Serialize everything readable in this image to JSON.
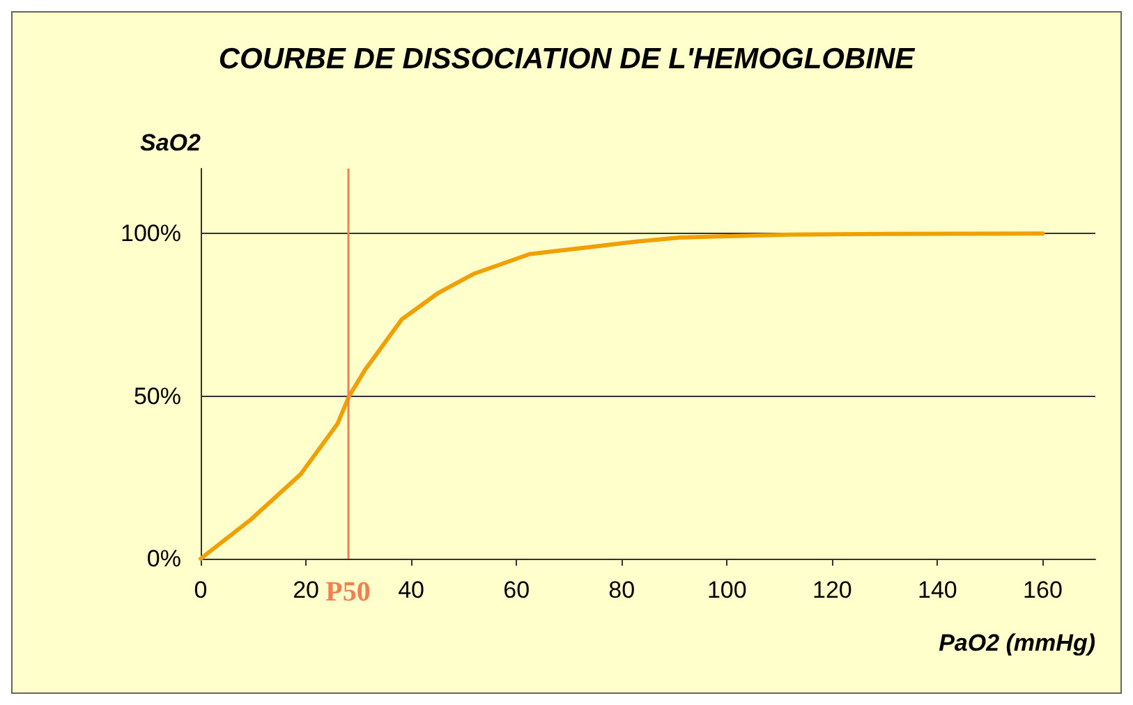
{
  "chart_data": {
    "type": "line",
    "title": "COURBE DE DISSOCIATION DE L'HEMOGLOBINE",
    "xlabel": "PaO2 (mmHg)",
    "ylabel": "SaO2",
    "series": [
      {
        "color": "#f0a000",
        "x": [
          0,
          9.5,
          19,
          26,
          28.2,
          31.2,
          38.2,
          45,
          52,
          62.5,
          73,
          82.5,
          91,
          112,
          130,
          160
        ],
        "values": [
          0,
          12,
          26,
          41.5,
          50,
          58,
          73.6,
          81.6,
          87.7,
          93.7,
          95.7,
          97.5,
          98.8,
          99.7,
          99.9,
          100
        ]
      }
    ],
    "xlim": [
      0,
      170
    ],
    "xticks": [
      0,
      20,
      40,
      60,
      80,
      100,
      120,
      140,
      160
    ],
    "ylim": [
      0,
      120
    ],
    "yticks": [
      {
        "value": 0,
        "label": "0%"
      },
      {
        "value": 50,
        "label": "50%"
      },
      {
        "value": 100,
        "label": "100%"
      }
    ],
    "ref_lines": [
      {
        "axis": "x",
        "value": 28,
        "label": "P50",
        "color": "#f08050"
      }
    ],
    "grid": "y",
    "marker": "none",
    "line_style": "solid"
  }
}
